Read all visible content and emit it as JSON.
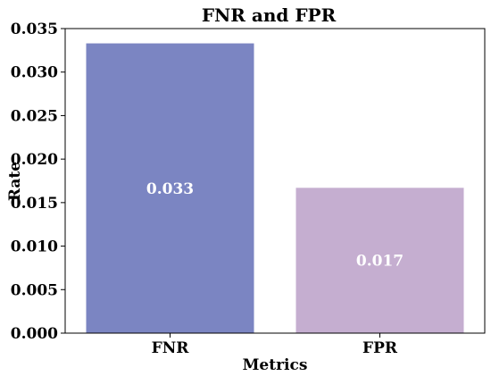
{
  "chart_data": {
    "type": "bar",
    "title": "FNR and FPR",
    "xlabel": "Metrics",
    "ylabel": "Rate",
    "categories": [
      "FNR",
      "FPR"
    ],
    "values": [
      0.0333,
      0.0167
    ],
    "data_labels": [
      "0.033",
      "0.017"
    ],
    "bar_colors": [
      "#7b85c2",
      "#c5aed0"
    ],
    "ylim": [
      0,
      0.035
    ],
    "yticks": [
      0.0,
      0.005,
      0.01,
      0.015,
      0.02,
      0.025,
      0.03,
      0.035
    ],
    "ytick_labels": [
      "0.000",
      "0.005",
      "0.010",
      "0.015",
      "0.020",
      "0.025",
      "0.030",
      "0.035"
    ],
    "grid": false,
    "legend": "none"
  }
}
